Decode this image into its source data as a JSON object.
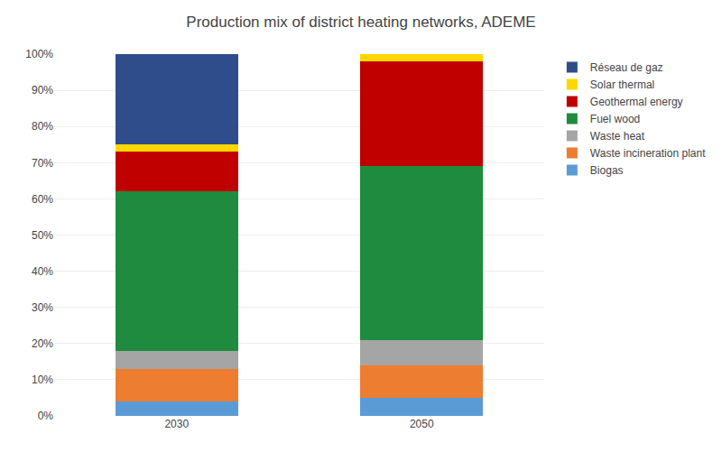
{
  "chart_data": {
    "type": "bar",
    "title": "Production mix of district heating networks, ADEME",
    "categories": [
      "2030",
      "2050"
    ],
    "series": [
      {
        "name": "Biogas",
        "color": "#5b9bd5",
        "values": [
          4,
          5
        ]
      },
      {
        "name": "Waste incineration plant",
        "color": "#ed7d31",
        "values": [
          9,
          9
        ]
      },
      {
        "name": "Waste heat",
        "color": "#a5a5a5",
        "values": [
          5,
          7
        ]
      },
      {
        "name": "Fuel wood",
        "color": "#1e8b3e",
        "values": [
          44,
          48
        ]
      },
      {
        "name": "Geothermal energy",
        "color": "#c00000",
        "values": [
          11,
          29
        ]
      },
      {
        "name": "Solar thermal",
        "color": "#ffd700",
        "values": [
          2,
          2
        ]
      },
      {
        "name": "Réseau de gaz",
        "color": "#2e4d8a",
        "values": [
          25,
          0
        ]
      }
    ],
    "stacked": true,
    "ylim": [
      0,
      100
    ],
    "yticks": [
      {
        "value": 0,
        "label": "0%"
      },
      {
        "value": 10,
        "label": "10%"
      },
      {
        "value": 20,
        "label": "20%"
      },
      {
        "value": 30,
        "label": "30%"
      },
      {
        "value": 40,
        "label": "40%"
      },
      {
        "value": 50,
        "label": "50%"
      },
      {
        "value": 60,
        "label": "60%"
      },
      {
        "value": 70,
        "label": "70%"
      },
      {
        "value": 80,
        "label": "80%"
      },
      {
        "value": 90,
        "label": "90%"
      },
      {
        "value": 100,
        "label": "100%"
      }
    ],
    "grid": true,
    "legend": "right"
  }
}
